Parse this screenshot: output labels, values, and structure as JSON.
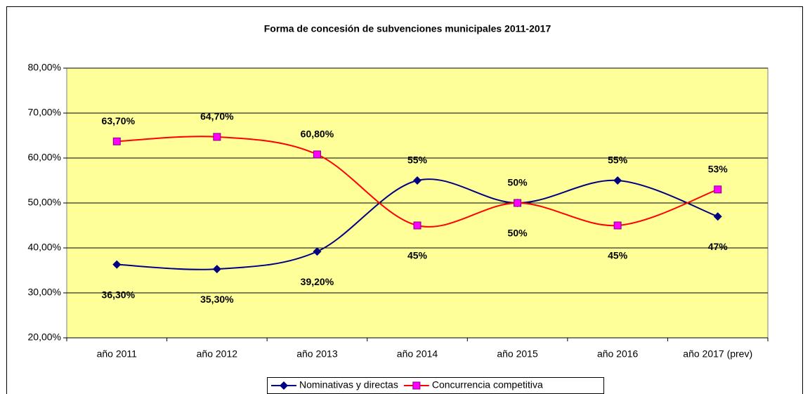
{
  "chart_data": {
    "type": "line",
    "title": "Forma de concesión de subvenciones municipales 2011-2017",
    "categories": [
      "año 2011",
      "año 2012",
      "año 2013",
      "año 2014",
      "año 2015",
      "año 2016",
      "año 2017 (prev)"
    ],
    "series": [
      {
        "name": "Nominativas y directas",
        "color": "#000080",
        "marker": "diamond",
        "values": [
          36.3,
          35.3,
          39.2,
          55,
          50,
          55,
          47
        ],
        "value_labels": [
          "36,30%",
          "35,30%",
          "39,20%",
          "55%",
          "50%",
          "55%",
          "47%"
        ]
      },
      {
        "name": "Concurrencia competitiva",
        "color": "#ff0000",
        "marker_color": "#ff00ff",
        "marker": "square",
        "values": [
          63.7,
          64.7,
          60.8,
          45,
          50,
          45,
          53
        ],
        "value_labels": [
          "63,70%",
          "64,70%",
          "60,80%",
          "45%",
          "50%",
          "45%",
          "53%"
        ]
      }
    ],
    "ylim": [
      20,
      80
    ],
    "yticks": [
      {
        "value": 20,
        "label": "20,00%"
      },
      {
        "value": 30,
        "label": "30,00%"
      },
      {
        "value": 40,
        "label": "40,00%"
      },
      {
        "value": 50,
        "label": "50,00%"
      },
      {
        "value": 60,
        "label": "60,00%"
      },
      {
        "value": 70,
        "label": "70,00%"
      },
      {
        "value": 80,
        "label": "80,00%"
      }
    ],
    "grid": true,
    "smooth": true,
    "legend": "bottom",
    "plot_background": "#ffff99"
  }
}
